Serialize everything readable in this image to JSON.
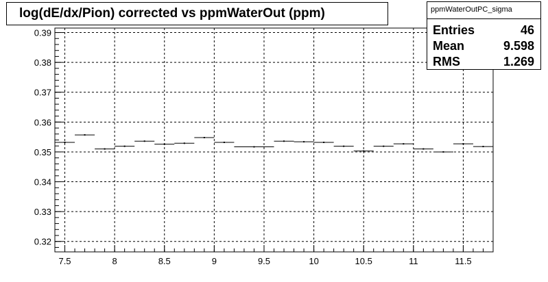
{
  "title": "log(dE/dx/Pion) corrected vs ppmWaterOut (ppm)",
  "stats": {
    "name": "ppmWaterOutPC_sigma",
    "rows": [
      {
        "label": "Entries",
        "value": "46"
      },
      {
        "label": "Mean",
        "value": "9.598"
      },
      {
        "label": "RMS",
        "value": "1.269"
      }
    ]
  },
  "chart_data": {
    "type": "scatter",
    "title": "log(dE/dx/Pion) corrected vs ppmWaterOut (ppm)",
    "xlabel": "",
    "ylabel": "",
    "xlim": [
      7.4,
      11.8
    ],
    "ylim": [
      0.3165,
      0.3915
    ],
    "grid": true,
    "legend": "top-right",
    "x_ticks": [
      7.5,
      8,
      8.5,
      9,
      9.5,
      10,
      10.5,
      11,
      11.5
    ],
    "x_tick_labels": [
      "7.5",
      "8",
      "8.5",
      "9",
      "9.5",
      "10",
      "10.5",
      "11",
      "11.5"
    ],
    "y_ticks": [
      0.32,
      0.33,
      0.34,
      0.35,
      0.36,
      0.37,
      0.38,
      0.39
    ],
    "y_tick_labels": [
      "0.32",
      "0.33",
      "0.34",
      "0.35",
      "0.36",
      "0.37",
      "0.38",
      "0.39"
    ],
    "bins": [
      {
        "x_low": 7.4,
        "x_high": 7.6,
        "y": 0.3532
      },
      {
        "x_low": 7.6,
        "x_high": 7.8,
        "y": 0.3557
      },
      {
        "x_low": 7.8,
        "x_high": 8.0,
        "y": 0.351
      },
      {
        "x_low": 8.0,
        "x_high": 8.2,
        "y": 0.3519
      },
      {
        "x_low": 8.2,
        "x_high": 8.4,
        "y": 0.3536
      },
      {
        "x_low": 8.4,
        "x_high": 8.6,
        "y": 0.3526
      },
      {
        "x_low": 8.6,
        "x_high": 8.8,
        "y": 0.3529
      },
      {
        "x_low": 8.8,
        "x_high": 9.0,
        "y": 0.3548
      },
      {
        "x_low": 9.0,
        "x_high": 9.2,
        "y": 0.3532
      },
      {
        "x_low": 9.2,
        "x_high": 9.6,
        "y": 0.3517
      },
      {
        "x_low": 9.6,
        "x_high": 9.8,
        "y": 0.3536
      },
      {
        "x_low": 9.8,
        "x_high": 10.0,
        "y": 0.3534
      },
      {
        "x_low": 10.0,
        "x_high": 10.2,
        "y": 0.3532
      },
      {
        "x_low": 10.2,
        "x_high": 10.4,
        "y": 0.3519
      },
      {
        "x_low": 10.4,
        "x_high": 10.6,
        "y": 0.3503
      },
      {
        "x_low": 10.6,
        "x_high": 10.8,
        "y": 0.3519
      },
      {
        "x_low": 10.8,
        "x_high": 11.0,
        "y": 0.3527
      },
      {
        "x_low": 11.0,
        "x_high": 11.2,
        "y": 0.351
      },
      {
        "x_low": 11.2,
        "x_high": 11.4,
        "y": 0.35
      },
      {
        "x_low": 11.4,
        "x_high": 11.6,
        "y": 0.3527
      },
      {
        "x_low": 11.6,
        "x_high": 11.8,
        "y": 0.3518
      }
    ]
  }
}
